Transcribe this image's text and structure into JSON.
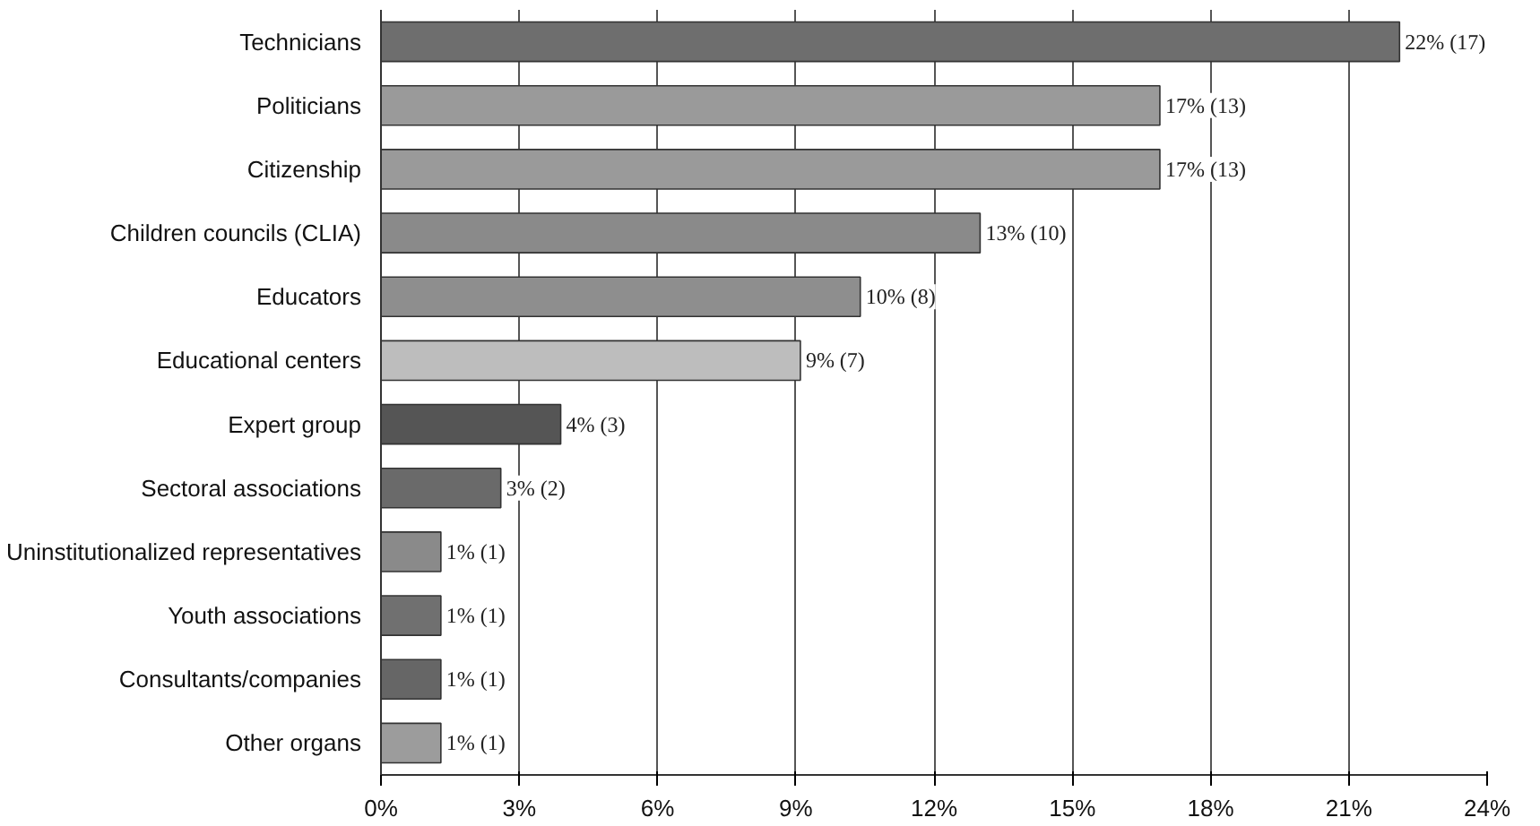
{
  "chart_data": {
    "type": "bar",
    "orientation": "horizontal",
    "categories": [
      "Technicians",
      "Politicians",
      "Citizenship",
      "Children councils (CLIA)",
      "Educators",
      "Educational centers",
      "Expert group",
      "Sectoral associations",
      "Uninstitutionalized representatives",
      "Youth associations",
      "Consultants/companies",
      "Other organs"
    ],
    "values": [
      22.1,
      16.9,
      16.9,
      13.0,
      10.4,
      9.1,
      3.9,
      2.6,
      1.3,
      1.3,
      1.3,
      1.3
    ],
    "colors": [
      "#6e6e6e",
      "#9a9a9a",
      "#9a9a9a",
      "#8a8a8a",
      "#8e8e8e",
      "#bdbdbd",
      "#555555",
      "#6a6a6a",
      "#8a8a8a",
      "#707070",
      "#666666",
      "#9c9c9c"
    ],
    "value_labels": [
      "22% (17)",
      "17% (13)",
      "17% (13)",
      "13% (10)",
      "10% (8)",
      "9% (7)",
      "4% (3)",
      "3% (2)",
      "1% (1)",
      "1% (1)",
      "1% (1)",
      "1% (1)"
    ],
    "xlim": [
      0,
      24
    ],
    "xticks": [
      {
        "value": 0,
        "label": "0%"
      },
      {
        "value": 3,
        "label": "3%"
      },
      {
        "value": 6,
        "label": "6%"
      },
      {
        "value": 9,
        "label": "9%"
      },
      {
        "value": 12,
        "label": "12%"
      },
      {
        "value": 15,
        "label": "15%"
      },
      {
        "value": 18,
        "label": "18%"
      },
      {
        "value": 21,
        "label": "21%"
      },
      {
        "value": 24,
        "label": "24%"
      }
    ],
    "grid": "x"
  }
}
